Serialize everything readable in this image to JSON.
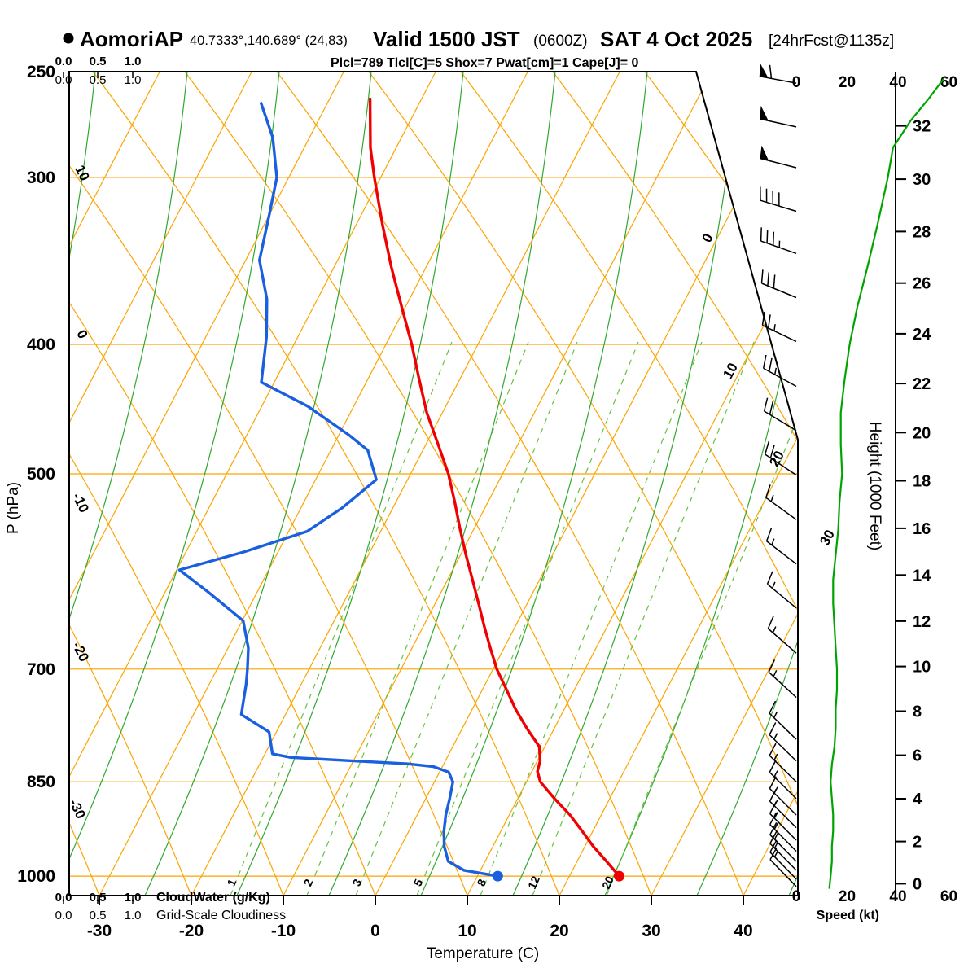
{
  "header": {
    "station": "AomoriAP",
    "coords": "40.7333°,140.689° (24,83)",
    "valid_main": "Valid 1500 JST",
    "valid_z": "(0600Z)",
    "valid_date": "SAT 4 Oct 2025",
    "forecast_tag": "[24hrFcst@1135z]",
    "indices": "Plcl=789 Tlcl[C]=5 Shox=7 Pwat[cm]=1 Cape[J]= 0"
  },
  "axes": {
    "pressure_label": "P (hPa)",
    "pressure_ticks": [
      250,
      300,
      400,
      500,
      700,
      850,
      1000
    ],
    "temp_label": "Temperature (C)",
    "temp_ticks": [
      -30,
      -20,
      -10,
      0,
      10,
      20,
      30,
      40
    ],
    "height_label": "Height (1000 Feet)",
    "height_ticks": [
      0,
      2,
      4,
      6,
      8,
      10,
      12,
      14,
      16,
      18,
      20,
      22,
      24,
      26,
      28,
      30,
      32
    ],
    "speed_label": "Speed (kt)",
    "speed_ticks": [
      0,
      20,
      40,
      60
    ],
    "cloudwater_label": "CloudWater (g/Kg)",
    "cloudiness_label": "Grid-Scale Cloudiness",
    "cloud_scale_ticks": [
      "0.0",
      "0.5",
      "1.0"
    ]
  },
  "grid_labels": {
    "isotherm_left": [
      "10",
      "0",
      "-10",
      "-20",
      "-30"
    ],
    "isotherm_right": [
      "0",
      "10",
      "20",
      "30"
    ],
    "mixing_ratio": [
      "1",
      "2",
      "3",
      "5",
      "8",
      "12",
      "20"
    ]
  },
  "colors": {
    "grid_orange": "#FCA400",
    "grid_green": "#2FA82F",
    "grid_green_light": "#67C23E",
    "green": "#00A400",
    "red": "#F00000",
    "blue": "#1A5FE0",
    "magenta": "#C2006B",
    "black": "#000000"
  },
  "chart_data": {
    "type": "line",
    "title": "Skew-T log-P sounding, AomoriAP, valid 1500 JST (0600Z) SAT 4 Oct 2025, 24hr forecast",
    "x_axis": {
      "label": "Temperature (C)",
      "range": [
        -40,
        45
      ],
      "ticks": [
        -30,
        -20,
        -10,
        0,
        10,
        20,
        30,
        40
      ]
    },
    "y_axis": {
      "label": "P (hPa)",
      "scale": "log",
      "range": [
        1035,
        250
      ],
      "ticks": [
        250,
        300,
        400,
        500,
        700,
        850,
        1000
      ]
    },
    "legend": "none",
    "grid": "skew-t (isotherms, dry adiabats, moist adiabats, mixing-ratio lines)",
    "series": [
      {
        "name": "temperature",
        "color": "#F00000",
        "units": [
          "hPa",
          "C"
        ],
        "points": [
          [
            1000,
            25.4
          ],
          [
            975,
            23.2
          ],
          [
            950,
            20.9
          ],
          [
            925,
            18.8
          ],
          [
            900,
            16.6
          ],
          [
            875,
            14.0
          ],
          [
            850,
            11.5
          ],
          [
            835,
            10.6
          ],
          [
            820,
            10.3
          ],
          [
            800,
            9.4
          ],
          [
            775,
            7.0
          ],
          [
            750,
            4.7
          ],
          [
            725,
            2.6
          ],
          [
            700,
            0.4
          ],
          [
            675,
            -1.5
          ],
          [
            650,
            -3.4
          ],
          [
            625,
            -5.3
          ],
          [
            600,
            -7.3
          ],
          [
            575,
            -9.4
          ],
          [
            550,
            -11.5
          ],
          [
            525,
            -13.6
          ],
          [
            500,
            -15.9
          ],
          [
            475,
            -18.7
          ],
          [
            450,
            -21.7
          ],
          [
            425,
            -24.4
          ],
          [
            400,
            -27.2
          ],
          [
            375,
            -30.4
          ],
          [
            350,
            -33.8
          ],
          [
            325,
            -37.2
          ],
          [
            300,
            -40.7
          ],
          [
            285,
            -42.8
          ],
          [
            270,
            -44.6
          ],
          [
            262,
            -45.6
          ]
        ]
      },
      {
        "name": "dewpoint",
        "color": "#1A5FE0",
        "units": [
          "hPa",
          "C"
        ],
        "points": [
          [
            1000,
            12.2
          ],
          [
            990,
            8.2
          ],
          [
            975,
            6.0
          ],
          [
            950,
            4.7
          ],
          [
            925,
            3.8
          ],
          [
            900,
            3.1
          ],
          [
            875,
            2.6
          ],
          [
            850,
            2.0
          ],
          [
            836,
            1.0
          ],
          [
            828,
            -1.0
          ],
          [
            824,
            -4.0
          ],
          [
            820,
            -10.0
          ],
          [
            815,
            -17.0
          ],
          [
            810,
            -19.2
          ],
          [
            780,
            -20.8
          ],
          [
            757,
            -24.8
          ],
          [
            718,
            -26.0
          ],
          [
            700,
            -26.7
          ],
          [
            675,
            -27.8
          ],
          [
            644,
            -29.9
          ],
          [
            613,
            -35.3
          ],
          [
            590,
            -39.7
          ],
          [
            572,
            -33.7
          ],
          [
            552,
            -28.0
          ],
          [
            530,
            -25.5
          ],
          [
            505,
            -23.4
          ],
          [
            480,
            -26.0
          ],
          [
            468,
            -28.8
          ],
          [
            445,
            -35.0
          ],
          [
            427,
            -41.4
          ],
          [
            395,
            -43.4
          ],
          [
            370,
            -45.5
          ],
          [
            346,
            -48.5
          ],
          [
            320,
            -50.0
          ],
          [
            300,
            -51.3
          ],
          [
            280,
            -54.0
          ],
          [
            264,
            -57.2
          ]
        ]
      },
      {
        "name": "wind_speed",
        "color": "#00A400",
        "units": [
          "hPa",
          "kt"
        ],
        "points": [
          [
            1022,
            13
          ],
          [
            1000,
            13.5
          ],
          [
            975,
            14
          ],
          [
            950,
            14
          ],
          [
            925,
            14.5
          ],
          [
            900,
            14.5
          ],
          [
            875,
            14
          ],
          [
            850,
            13.5
          ],
          [
            825,
            14
          ],
          [
            800,
            15
          ],
          [
            775,
            15.5
          ],
          [
            750,
            15.5
          ],
          [
            725,
            16
          ],
          [
            700,
            16
          ],
          [
            675,
            15.5
          ],
          [
            650,
            15
          ],
          [
            625,
            14.5
          ],
          [
            600,
            14.5
          ],
          [
            575,
            15.5
          ],
          [
            550,
            16.5
          ],
          [
            525,
            17
          ],
          [
            500,
            18
          ],
          [
            475,
            17.5
          ],
          [
            450,
            17.5
          ],
          [
            425,
            19
          ],
          [
            400,
            21
          ],
          [
            375,
            24
          ],
          [
            350,
            28
          ],
          [
            325,
            32
          ],
          [
            300,
            36
          ],
          [
            285,
            38
          ],
          [
            272,
            45
          ],
          [
            262,
            52
          ],
          [
            253,
            58
          ]
        ]
      }
    ],
    "surface_markers": {
      "pressure_hpa": 1000,
      "temperature_c": 25.4,
      "dewpoint_c": 12.2
    },
    "wind_barbs": {
      "units": [
        "hPa",
        "kt"
      ],
      "points": [
        [
          255,
          60
        ],
        [
          275,
          50
        ],
        [
          295,
          50
        ],
        [
          318,
          40
        ],
        [
          342,
          35
        ],
        [
          369,
          30
        ],
        [
          398,
          27
        ],
        [
          430,
          25
        ],
        [
          464,
          21
        ],
        [
          501,
          18
        ],
        [
          541,
          17
        ],
        [
          584,
          16
        ],
        [
          630,
          15
        ],
        [
          681,
          15
        ],
        [
          735,
          16
        ],
        [
          790,
          15
        ],
        [
          820,
          15
        ],
        [
          850,
          14
        ],
        [
          875,
          13
        ],
        [
          900,
          14
        ],
        [
          920,
          13
        ],
        [
          940,
          13
        ],
        [
          958,
          13
        ],
        [
          975,
          13
        ],
        [
          990,
          13
        ],
        [
          1005,
          13
        ],
        [
          1018,
          12
        ]
      ]
    }
  }
}
